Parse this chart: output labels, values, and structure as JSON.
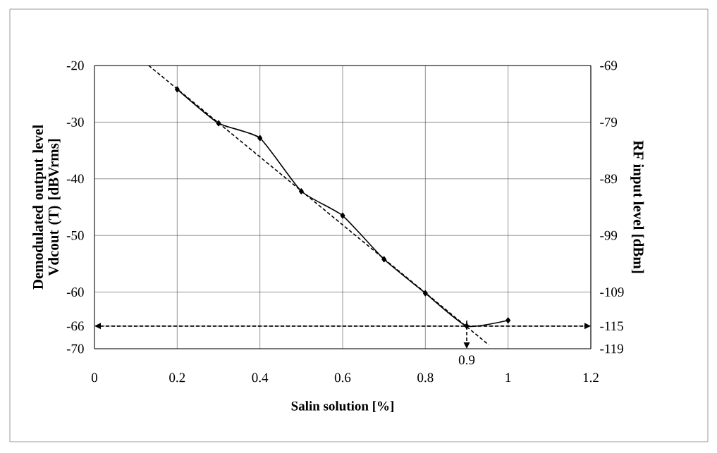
{
  "chart_data": {
    "type": "line",
    "xlabel": "Salin solution [%]",
    "ylabel": "Demodulated output level Vdcout (T) [dBVrms]",
    "y2label": "RF input level [dBm]",
    "x": [
      0.2,
      0.3,
      0.4,
      0.5,
      0.6,
      0.7,
      0.8,
      0.9,
      1.0
    ],
    "series": [
      {
        "color": "#000000",
        "values": [
          -24.2,
          -30.2,
          -32.8,
          -42.2,
          -46.5,
          -54.2,
          -60.2,
          -66,
          -65
        ]
      },
      {
        "type": "line",
        "color": "#000000",
        "x": [
          0.131,
          0.953
        ],
        "values": [
          -20,
          -69.3
        ],
        "line_style": "dashed",
        "marker": "none"
      }
    ],
    "xlim": [
      0,
      1.2
    ],
    "ylim": [
      -70,
      -20
    ],
    "y2lim": [
      -119,
      -69
    ],
    "xticks": [
      0,
      0.2,
      0.4,
      0.6,
      0.8,
      1,
      1.2
    ],
    "yticks": [
      -20,
      -30,
      -40,
      -50,
      -60,
      -66,
      -70
    ],
    "y2ticks": [
      -69,
      -79,
      -89,
      -99,
      -109,
      -115,
      -119
    ],
    "ref_lines": [
      {
        "axis": "y",
        "value": -66,
        "line_style": "dashed",
        "color": "#000000"
      },
      {
        "axis": "x",
        "value": 0.9,
        "label": "0.9",
        "line_style": "dashed",
        "color": "#000000"
      }
    ],
    "grid": true,
    "marker": "diamond",
    "line_style": "solid"
  }
}
